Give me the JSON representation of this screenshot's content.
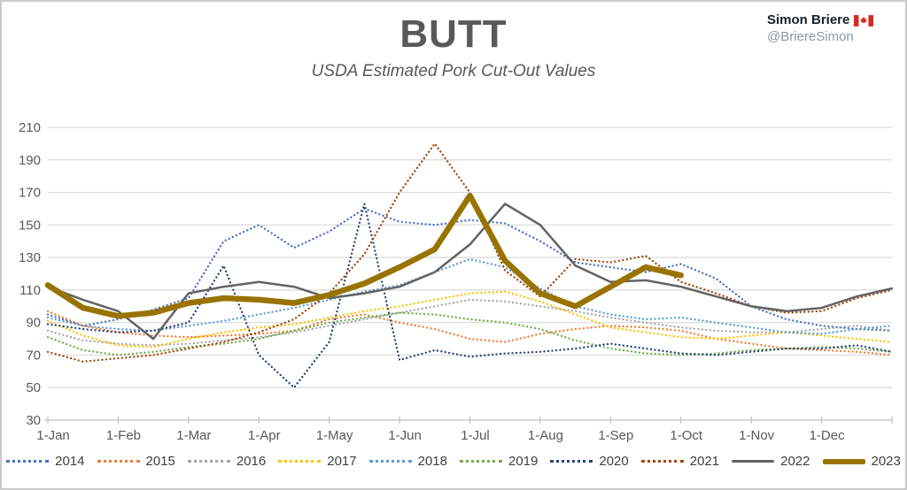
{
  "header": {
    "author_name": "Simon Briere",
    "author_handle": "@BriereSimon",
    "flag_icon": "canada-flag",
    "flag_colors": {
      "red": "#d52b1e",
      "white": "#ffffff"
    }
  },
  "chart_data": {
    "type": "line",
    "title": "BUTT",
    "subtitle": "USDA Estimated Pork Cut-Out Values",
    "axis_color": "#595959",
    "gridline_color": "#d9d9d9",
    "axisline_color": "#bfbfbf",
    "grid": "horizontal",
    "legend_position": "bottom",
    "ylim": [
      30,
      210
    ],
    "y_ticks": [
      30,
      50,
      70,
      90,
      110,
      130,
      150,
      170,
      190,
      210
    ],
    "x_tick_labels": [
      "1-Jan",
      "1-Feb",
      "1-Mar",
      "1-Apr",
      "1-May",
      "1-Jun",
      "1-Jul",
      "1-Aug",
      "1-Sep",
      "1-Oct",
      "1-Nov",
      "1-Dec"
    ],
    "x_points": [
      "1-Jan",
      "15-Jan",
      "1-Feb",
      "15-Feb",
      "1-Mar",
      "15-Mar",
      "1-Apr",
      "15-Apr",
      "1-May",
      "15-May",
      "1-Jun",
      "15-Jun",
      "1-Jul",
      "15-Jul",
      "1-Aug",
      "15-Aug",
      "1-Sep",
      "15-Sep",
      "1-Oct",
      "15-Oct",
      "1-Nov",
      "15-Nov",
      "1-Dec",
      "15-Dec",
      "31-Dec"
    ],
    "series": [
      {
        "name": "2014",
        "color": "#4472C4",
        "style": "dotted",
        "width": 2.3,
        "values": [
          95,
          88,
          92,
          98,
          105,
          140,
          150,
          136,
          146,
          160,
          152,
          150,
          153,
          151,
          140,
          127,
          124,
          121,
          126,
          117,
          100,
          92,
          88,
          86,
          85
        ]
      },
      {
        "name": "2015",
        "color": "#ED7D31",
        "style": "dotted",
        "width": 2.3,
        "values": [
          97,
          88,
          84,
          82,
          81,
          82,
          83,
          85,
          92,
          95,
          90,
          86,
          80,
          78,
          83,
          86,
          88,
          87,
          85,
          80,
          77,
          74,
          73,
          72,
          70
        ]
      },
      {
        "name": "2016",
        "color": "#A5A5A5",
        "style": "dotted",
        "width": 2.3,
        "values": [
          85,
          79,
          77,
          76,
          77,
          79,
          81,
          84,
          88,
          92,
          96,
          100,
          104,
          103,
          100,
          97,
          93,
          90,
          87,
          85,
          84,
          84,
          86,
          88,
          85
        ]
      },
      {
        "name": "2017",
        "color": "#FFC000",
        "style": "dotted",
        "width": 2.3,
        "values": [
          91,
          82,
          76,
          75,
          80,
          84,
          87,
          89,
          93,
          97,
          100,
          104,
          108,
          109,
          103,
          95,
          87,
          84,
          81,
          80,
          82,
          84,
          82,
          80,
          78
        ]
      },
      {
        "name": "2018",
        "color": "#5B9BD5",
        "style": "dotted",
        "width": 2.3,
        "values": [
          93,
          88,
          86,
          85,
          88,
          91,
          95,
          99,
          104,
          109,
          113,
          121,
          129,
          124,
          111,
          100,
          95,
          92,
          93,
          90,
          87,
          84,
          83,
          86,
          88
        ]
      },
      {
        "name": "2019",
        "color": "#70AD47",
        "style": "dotted",
        "width": 2.3,
        "values": [
          81,
          73,
          70,
          72,
          75,
          77,
          80,
          85,
          90,
          93,
          96,
          95,
          92,
          90,
          86,
          79,
          74,
          71,
          70,
          71,
          73,
          74,
          75,
          74,
          72
        ]
      },
      {
        "name": "2020",
        "color": "#264478",
        "style": "dotted",
        "width": 2.3,
        "values": [
          89,
          86,
          84,
          85,
          90,
          125,
          70,
          50,
          78,
          163,
          67,
          73,
          69,
          71,
          72,
          74,
          77,
          74,
          71,
          70,
          72,
          74,
          74,
          76,
          72
        ]
      },
      {
        "name": "2021",
        "color": "#9E480E",
        "style": "dotted",
        "width": 2.3,
        "values": [
          72,
          66,
          68,
          70,
          74,
          78,
          84,
          92,
          108,
          132,
          170,
          200,
          170,
          122,
          106,
          129,
          127,
          131,
          115,
          108,
          100,
          96,
          97,
          105,
          110
        ]
      },
      {
        "name": "2022",
        "color": "#636363",
        "style": "solid",
        "width": 2.5,
        "values": [
          112,
          104,
          97,
          80,
          108,
          112,
          115,
          112,
          105,
          108,
          112,
          121,
          138,
          163,
          150,
          125,
          115,
          116,
          112,
          106,
          100,
          97,
          99,
          106,
          111
        ]
      },
      {
        "name": "2023",
        "color": "#997300",
        "style": "solid",
        "width": 6.5,
        "values": [
          113,
          99,
          94,
          96,
          102,
          105,
          104,
          102,
          107,
          114,
          124,
          135,
          168,
          128,
          108,
          100,
          112,
          124,
          119
        ]
      }
    ]
  }
}
